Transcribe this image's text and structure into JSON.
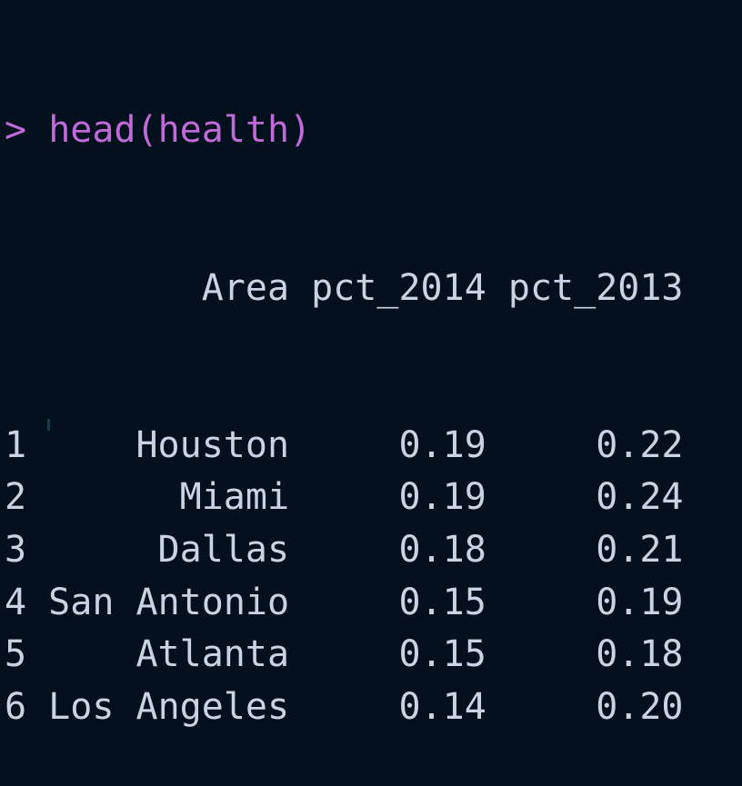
{
  "console": {
    "prompt": ">",
    "command": "head(health)",
    "columns": [
      "Area",
      "pct_2014",
      "pct_2013"
    ],
    "rows": [
      {
        "id": "1",
        "area": "Houston",
        "pct_2014": "0.19",
        "pct_2013": "0.22"
      },
      {
        "id": "2",
        "area": "Miami",
        "pct_2014": "0.19",
        "pct_2013": "0.24"
      },
      {
        "id": "3",
        "area": "Dallas",
        "pct_2014": "0.18",
        "pct_2013": "0.21"
      },
      {
        "id": "4",
        "area": "San Antonio",
        "pct_2014": "0.15",
        "pct_2013": "0.19"
      },
      {
        "id": "5",
        "area": "Atlanta",
        "pct_2014": "0.15",
        "pct_2013": "0.18"
      },
      {
        "id": "6",
        "area": "Los Angeles",
        "pct_2014": "0.14",
        "pct_2013": "0.20"
      }
    ]
  },
  "colors": {
    "background": "#03101d",
    "text": "#c8d4e6",
    "command": "#c06ad8"
  }
}
